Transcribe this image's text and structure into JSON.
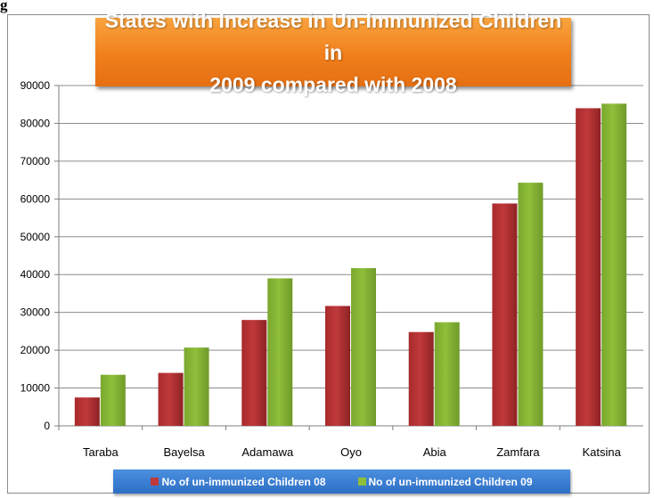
{
  "figure_label": "g",
  "chart_data": {
    "type": "bar",
    "title": "States with  Increase in Un-Immunized Children in 2009 compared with 2008",
    "categories": [
      "Taraba",
      "Bayelsa",
      "Adamawa",
      "Oyo",
      "Abia",
      "Zamfara",
      "Katsina"
    ],
    "series": [
      {
        "name": "No of un-immunized Children  08",
        "color": "#c0393b",
        "values": [
          7500,
          14000,
          28000,
          31700,
          24800,
          58800,
          84000
        ]
      },
      {
        "name": "No of un-immunized Children  09",
        "color": "#8fbf3a",
        "values": [
          13500,
          20700,
          39000,
          41700,
          27400,
          64300,
          85200
        ]
      }
    ],
    "yticks": [
      "0",
      "10000",
      "20000",
      "30000",
      "40000",
      "50000",
      "60000",
      "70000",
      "80000",
      "90000"
    ],
    "ylim": [
      0,
      90000
    ],
    "grid": true,
    "legend_position": "bottom"
  }
}
